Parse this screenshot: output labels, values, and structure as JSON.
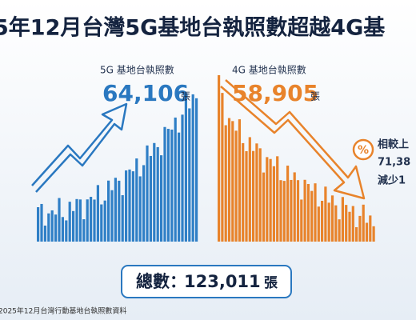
{
  "title": "5年12月台灣5G基地台執照數超越4G基",
  "panels": [
    {
      "label": "5G 基地台執照數",
      "value": "64,106",
      "unit": "張"
    },
    {
      "label": "4G 基地台執照數",
      "value": "58,905",
      "unit": "張"
    }
  ],
  "comparison": {
    "icon": "%",
    "lines": [
      "相較上",
      "71,38",
      "減少1"
    ]
  },
  "total": {
    "label": "總數：",
    "value": "123,011",
    "unit": "張"
  },
  "footer": "2025年12月台灣行動基地台執照數資料"
}
